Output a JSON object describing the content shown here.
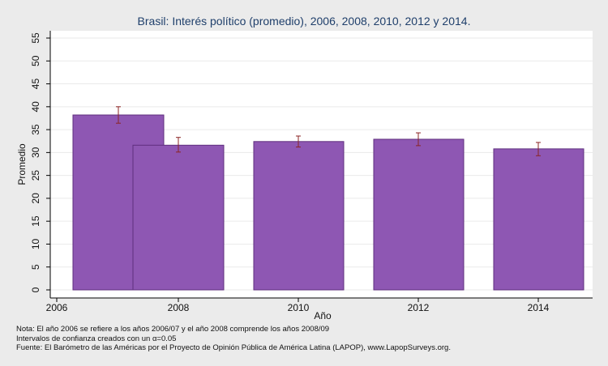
{
  "chart_data": {
    "type": "bar",
    "title": "Brasil: Interés político (promedio), 2006, 2008, 2010, 2012 y 2014.",
    "xlabel": "Año",
    "ylabel": "Promedio",
    "x_ticks": [
      "2006",
      "2008",
      "2010",
      "2012",
      "2014"
    ],
    "y_ticks": [
      0,
      5,
      10,
      15,
      20,
      25,
      30,
      35,
      40,
      45,
      50,
      55
    ],
    "ylim": [
      0,
      55
    ],
    "grid": true,
    "legend": "none",
    "colors": {
      "bar": "#8e57b3",
      "bar_edge": "#5f2f7e",
      "error_bar": "#8b2424",
      "background": "#ebebeb",
      "plot_bg": "#ffffff",
      "grid": "#eaeaea"
    },
    "bars": [
      {
        "year": 2006,
        "value": 38.2,
        "ci_low": 36.4,
        "ci_high": 40.0
      },
      {
        "year": 2008,
        "value": 31.6,
        "ci_low": 30.1,
        "ci_high": 33.3
      },
      {
        "year": 2010,
        "value": 32.4,
        "ci_low": 31.2,
        "ci_high": 33.6
      },
      {
        "year": 2012,
        "value": 32.9,
        "ci_low": 31.5,
        "ci_high": 34.3
      },
      {
        "year": 2014,
        "value": 30.8,
        "ci_low": 29.3,
        "ci_high": 32.2
      }
    ]
  },
  "notes": {
    "line1": "Nota: El año 2006 se refiere a los años 2006/07 y el año 2008 comprende los años 2008/09",
    "line2": "Intervalos de confianza creados con un α=0.05",
    "line3": "Fuente: El Barómetro de las Américas por el Proyecto de Opinión Pública de América Latina (LAPOP), www.LapopSurveys.org."
  }
}
